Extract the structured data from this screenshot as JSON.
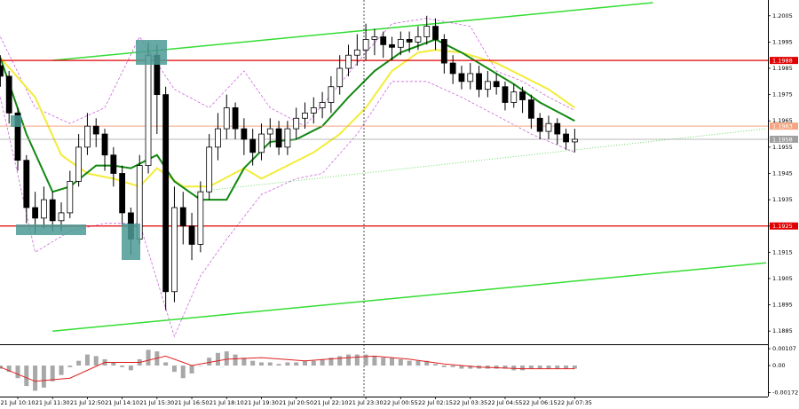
{
  "chart_data": {
    "type": "candlestick",
    "open": [
      1.1986,
      1.1982,
      1.1968,
      1.195,
      1.1932,
      1.1928,
      1.1935,
      1.1927,
      1.193,
      1.1942,
      1.1955,
      1.1963,
      1.196,
      1.1952,
      1.1945,
      1.193,
      1.192,
      1.1948,
      1.199,
      1.1975,
      1.19,
      1.1932,
      1.1925,
      1.1918,
      1.1938,
      1.1955,
      1.1962,
      1.197,
      1.1962,
      1.1958,
      1.1953,
      1.196,
      1.1962,
      1.1955,
      1.1962,
      1.1966,
      1.1968,
      1.197,
      1.1972,
      1.1978,
      1.1985,
      1.199,
      1.1992,
      1.1996,
      1.1997,
      1.1994,
      1.1993,
      1.1996,
      1.1995,
      1.1997,
      1.2001,
      1.1996,
      1.1987,
      1.1983,
      1.198,
      1.1983,
      1.1977,
      1.198,
      1.1978,
      1.1972,
      1.1976,
      1.1973,
      1.1966,
      1.1961,
      1.1964,
      1.196,
      1.1957
    ],
    "high": [
      1.199,
      1.1984,
      1.197,
      1.1952,
      1.1938,
      1.194,
      1.1938,
      1.1934,
      1.1946,
      1.196,
      1.1968,
      1.1966,
      1.1962,
      1.1955,
      1.1948,
      1.1932,
      1.1952,
      1.1995,
      1.1994,
      1.1978,
      1.194,
      1.1938,
      1.193,
      1.1942,
      1.196,
      1.1968,
      1.1975,
      1.1972,
      1.1966,
      1.1962,
      1.1964,
      1.1966,
      1.1965,
      1.1965,
      1.197,
      1.1972,
      1.1974,
      1.1976,
      1.1982,
      1.199,
      1.1994,
      1.1998,
      1.2002,
      1.2,
      1.1999,
      1.1997,
      1.1999,
      1.1999,
      1.2001,
      1.2005,
      1.2004,
      1.1998,
      1.199,
      1.1986,
      1.1987,
      1.1986,
      1.1984,
      1.1983,
      1.198,
      1.1979,
      1.1978,
      1.1975,
      1.1968,
      1.1967,
      1.1966,
      1.1962,
      1.1962
    ],
    "low": [
      1.1978,
      1.1964,
      1.1946,
      1.1926,
      1.1922,
      1.1924,
      1.1923,
      1.1923,
      1.1928,
      1.194,
      1.1952,
      1.1955,
      1.1946,
      1.194,
      1.1925,
      1.1914,
      1.1918,
      1.1945,
      1.196,
      1.1893,
      1.1896,
      1.1918,
      1.1912,
      1.1915,
      1.1935,
      1.195,
      1.1958,
      1.1958,
      1.1952,
      1.1948,
      1.195,
      1.1955,
      1.1952,
      1.1952,
      1.1958,
      1.1962,
      1.1964,
      1.1966,
      1.1968,
      1.1975,
      1.1982,
      1.1986,
      1.1988,
      1.199,
      1.1989,
      1.1988,
      1.199,
      1.1991,
      1.1992,
      1.1994,
      1.1992,
      1.1983,
      1.1979,
      1.1977,
      1.1977,
      1.1974,
      1.1974,
      1.1975,
      1.1969,
      1.197,
      1.1968,
      1.1962,
      1.1958,
      1.1958,
      1.1956,
      1.1954,
      1.1953
    ],
    "close": [
      1.1982,
      1.1968,
      1.195,
      1.1932,
      1.1928,
      1.1935,
      1.1927,
      1.193,
      1.1942,
      1.1955,
      1.1963,
      1.196,
      1.1952,
      1.1945,
      1.193,
      1.192,
      1.1948,
      1.199,
      1.1975,
      1.19,
      1.1932,
      1.1925,
      1.1918,
      1.1938,
      1.1955,
      1.1962,
      1.197,
      1.1962,
      1.1958,
      1.1953,
      1.196,
      1.1962,
      1.1955,
      1.1962,
      1.1966,
      1.1968,
      1.197,
      1.1972,
      1.1978,
      1.1985,
      1.199,
      1.1992,
      1.1996,
      1.1997,
      1.1994,
      1.1993,
      1.1996,
      1.1995,
      1.1997,
      1.2001,
      1.1996,
      1.1987,
      1.1983,
      1.198,
      1.1983,
      1.1977,
      1.198,
      1.1978,
      1.1972,
      1.1976,
      1.1973,
      1.1966,
      1.1961,
      1.1964,
      1.196,
      1.1957,
      1.1958
    ],
    "up_color": "#ffffff",
    "down_color": "#000000",
    "xlim": [
      -0.04,
      88.2
    ],
    "xticks": [
      {
        "value": 2,
        "label": "21 Jul 10:10"
      },
      {
        "value": 6,
        "label": "21 Jul 11:30"
      },
      {
        "value": 10,
        "label": "21 Jul 12:50"
      },
      {
        "value": 14,
        "label": "21 Jul 14:10"
      },
      {
        "value": 18,
        "label": "21 Jul 15:30"
      },
      {
        "value": 22,
        "label": "21 Jul 16:50"
      },
      {
        "value": 26,
        "label": "21 Jul 18:10"
      },
      {
        "value": 30,
        "label": "21 Jul 19:30"
      },
      {
        "value": 34,
        "label": "21 Jul 20:50"
      },
      {
        "value": 38,
        "label": "21 Jul 22:10"
      },
      {
        "value": 42,
        "label": "21 Jul 23:30"
      },
      {
        "value": 46,
        "label": "22 Jul 00:55"
      },
      {
        "value": 50,
        "label": "22 Jul 02:15"
      },
      {
        "value": 54,
        "label": "22 Jul 03:35"
      },
      {
        "value": 58,
        "label": "22 Jul 04:55"
      },
      {
        "value": 62,
        "label": "22 Jul 06:15"
      },
      {
        "value": 66,
        "label": "22 Jul 07:35"
      }
    ],
    "ylim": [
      1.188,
      1.2011
    ],
    "yticks": [
      1.2005,
      1.1995,
      1.1985,
      1.1975,
      1.1965,
      1.1955,
      1.1945,
      1.1935,
      1.1925,
      1.1915,
      1.1905,
      1.1895,
      1.1885
    ],
    "lines": [
      {
        "color": "#33dd33",
        "style": "solid",
        "width": 1.5,
        "x": [
          6,
          75
        ],
        "values": [
          1.1988,
          1.201
        ]
      },
      {
        "color": "#33dd33",
        "style": "solid",
        "width": 1.5,
        "x": [
          6,
          88
        ],
        "values": [
          1.1885,
          1.1911
        ]
      },
      {
        "color": "#66dd66",
        "style": "dotted",
        "width": 1,
        "x": [
          22.4,
          88
        ],
        "values": [
          1.1938,
          1.1962
        ]
      },
      {
        "color": "#cc66dd",
        "style": "dashed",
        "width": 0.8,
        "x": [
          0,
          4,
          8,
          12,
          16,
          20,
          24,
          28,
          31,
          35,
          39,
          42,
          45,
          49,
          54,
          57,
          60,
          63,
          66
        ],
        "values": [
          1.1997,
          1.197,
          1.1964,
          1.197,
          1.1997,
          1.1977,
          1.197,
          1.1984,
          1.197,
          1.1963,
          1.1979,
          1.1991,
          1.2002,
          1.2004,
          1.2001,
          1.1984,
          1.198,
          1.1974,
          1.1969
        ]
      },
      {
        "color": "#cc66dd",
        "style": "dashed",
        "width": 0.8,
        "x": [
          0,
          4,
          8,
          12,
          16,
          20,
          23,
          26,
          30,
          34,
          37,
          41,
          45,
          49,
          53,
          57,
          61,
          66
        ],
        "values": [
          1.1974,
          1.1915,
          1.1923,
          1.1926,
          1.1926,
          1.1883,
          1.1906,
          1.192,
          1.1937,
          1.1943,
          1.1945,
          1.196,
          1.198,
          1.198,
          1.1974,
          1.1967,
          1.196,
          1.1953
        ]
      },
      {
        "color": "#f2ec3a",
        "style": "solid",
        "width": 2,
        "x": [
          0,
          4,
          7,
          10,
          13,
          16,
          18,
          21,
          24,
          28,
          30,
          33,
          36,
          39,
          42,
          45,
          48,
          50,
          53,
          57,
          60,
          63,
          66
        ],
        "values": [
          1.1989,
          1.1974,
          1.1952,
          1.1945,
          1.1943,
          1.194,
          1.1947,
          1.194,
          1.194,
          1.1947,
          1.1943,
          1.1948,
          1.1953,
          1.196,
          1.197,
          1.1984,
          1.1991,
          1.1992,
          1.1991,
          1.1987,
          1.1982,
          1.1977,
          1.197
        ]
      },
      {
        "color": "#118811",
        "style": "solid",
        "width": 2,
        "x": [
          0,
          3,
          6,
          8,
          11,
          13,
          15,
          18,
          20,
          23,
          26,
          28,
          31,
          34,
          37,
          40,
          43,
          46,
          50,
          53,
          56,
          59,
          62,
          66
        ],
        "values": [
          1.1989,
          1.196,
          1.1938,
          1.194,
          1.1948,
          1.1948,
          1.1947,
          1.1952,
          1.1942,
          1.1935,
          1.1935,
          1.1947,
          1.1957,
          1.1958,
          1.1963,
          1.1974,
          1.1984,
          1.1991,
          1.1996,
          1.1991,
          1.1985,
          1.1979,
          1.1972,
          1.1965
        ]
      }
    ],
    "levels": [
      {
        "value": 1.1988,
        "color": "#e00000",
        "text_color": "#ffffff",
        "width": 1.2
      },
      {
        "value": 1.1925,
        "color": "#e00000",
        "text_color": "#ffffff",
        "width": 1.2
      },
      {
        "value": 1.1963,
        "color": "#f4a582",
        "text_color": "#ffffff",
        "width": 1
      },
      {
        "value": 1.1958,
        "color": "#a0a0a0",
        "text_color": "#ffffff",
        "width": 0.8
      }
    ],
    "oscillator": {
      "type": "histogram",
      "color": "#a8a8a8",
      "ylim": [
        -0.00197,
        0.00124
      ],
      "yticks": [
        0.00107,
        {
          "value": 0,
          "label": "0.00"
        },
        -0.00172
      ],
      "values": [
        -0.0002,
        -0.0004,
        -0.0008,
        -0.0013,
        -0.0016,
        -0.0014,
        -0.001,
        -0.0006,
        -0.0001,
        0.0003,
        0.0007,
        0.0006,
        0.0004,
        0.0002,
        -0.0001,
        -0.0003,
        0.0004,
        0.001,
        0.0009,
        0.0002,
        -0.0004,
        -0.0008,
        -0.0005,
        0.0,
        0.0005,
        0.0008,
        0.0009,
        0.0007,
        0.0005,
        0.0003,
        0.0002,
        0.0002,
        0.0001,
        0.0002,
        0.0002,
        0.0003,
        0.0003,
        0.0004,
        0.0005,
        0.0006,
        0.0007,
        0.0007,
        0.0007,
        0.0006,
        0.0005,
        0.0005,
        0.0004,
        0.0003,
        0.0003,
        0.0003,
        0.0001,
        -0.0001,
        -0.0001,
        -0.0002,
        -0.0002,
        -0.0002,
        -0.0002,
        -0.0002,
        -0.0002,
        -0.0003,
        -0.0003,
        -0.0002,
        -0.0002,
        -0.0002,
        -0.0002,
        -0.0002,
        -0.0002
      ],
      "signal": {
        "color": "#e02020",
        "x": [
          0,
          4,
          8,
          12,
          16,
          19,
          22,
          26,
          30,
          35,
          40,
          43,
          47,
          51,
          55,
          60,
          66
        ],
        "values": [
          -0.0001,
          -0.001,
          -0.0008,
          0.0002,
          0.0002,
          0.0006,
          0.0,
          0.0004,
          0.0005,
          0.0003,
          0.0005,
          0.0006,
          0.0004,
          0.0001,
          -0.0001,
          -0.0002,
          -0.0002
        ]
      }
    }
  }
}
